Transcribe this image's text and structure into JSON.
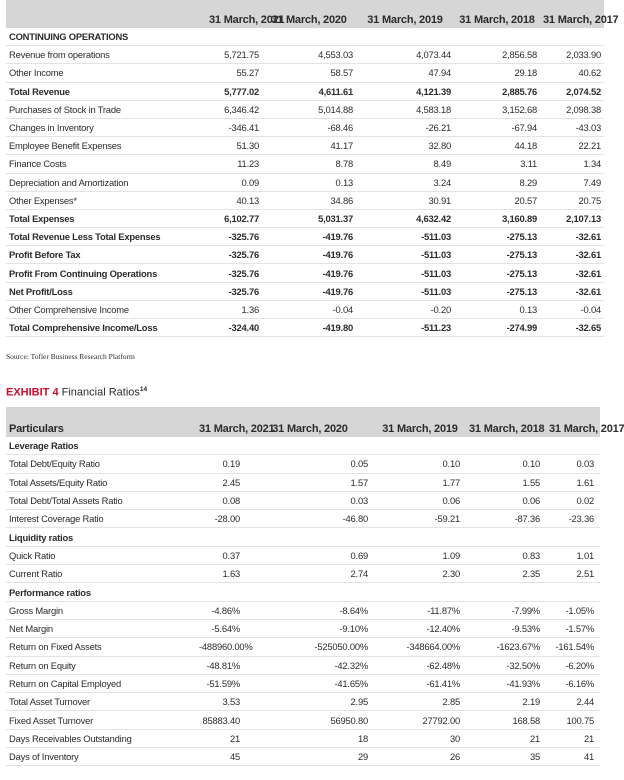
{
  "income_table": {
    "columns": [
      "31 March, 2021",
      "31 March, 2020",
      "31 March, 2019",
      "31 March, 2018",
      "31 March, 2017"
    ],
    "section": "CONTINUING OPERATIONS",
    "rows": [
      {
        "label": "Revenue from operations",
        "values": [
          "5,721.75",
          "4,553.03",
          "4,073.44",
          "2,856.58",
          "2,033.90"
        ]
      },
      {
        "label": "Other Income",
        "values": [
          "55.27",
          "58.57",
          "47.94",
          "29.18",
          "40.62"
        ]
      },
      {
        "label": "Total Revenue",
        "bold": true,
        "values": [
          "5,777.02",
          "4,611.61",
          "4,121.39",
          "2,885.76",
          "2,074.52"
        ]
      },
      {
        "label": "Purchases of Stock in Trade",
        "values": [
          "6,346.42",
          "5,014.88",
          "4,583.18",
          "3,152.68",
          "2,098.38"
        ]
      },
      {
        "label": "Changes in Inventory",
        "values": [
          "-346.41",
          "-68.46",
          "-26.21",
          "-67.94",
          "-43.03"
        ]
      },
      {
        "label": "Employee Benefit Expenses",
        "values": [
          "51.30",
          "41.17",
          "32.80",
          "44.18",
          "22.21"
        ]
      },
      {
        "label": "Finance Costs",
        "values": [
          "11.23",
          "8.78",
          "8.49",
          "3.11",
          "1.34"
        ]
      },
      {
        "label": "Depreciation and Amortization",
        "values": [
          "0.09",
          "0.13",
          "3.24",
          "8.29",
          "7.49"
        ]
      },
      {
        "label": "Other Expenses*",
        "values": [
          "40.13",
          "34.86",
          "30.91",
          "20.57",
          "20.75"
        ]
      },
      {
        "label": "Total Expenses",
        "bold": true,
        "values": [
          "6,102.77",
          "5,031.37",
          "4,632.42",
          "3,160.89",
          "2,107.13"
        ]
      },
      {
        "label": "Total Revenue Less Total Expenses",
        "bold": true,
        "values": [
          "-325.76",
          "-419.76",
          "-511.03",
          "-275.13",
          "-32.61"
        ]
      },
      {
        "label": "Profit Before Tax",
        "bold": true,
        "values": [
          "-325.76",
          "-419.76",
          "-511.03",
          "-275.13",
          "-32.61"
        ]
      },
      {
        "label": "Profit From Continuing Operations",
        "bold": true,
        "values": [
          "-325.76",
          "-419.76",
          "-511.03",
          "-275.13",
          "-32.61"
        ]
      },
      {
        "label": "Net Profit/Loss",
        "bold": true,
        "values": [
          "-325.76",
          "-419.76",
          "-511.03",
          "-275.13",
          "-32.61"
        ]
      },
      {
        "label": "Other Comprehensive Income",
        "values": [
          "1.36",
          "-0.04",
          "-0.20",
          "0.13",
          "-0.04"
        ]
      },
      {
        "label": "Total Comprehensive Income/Loss",
        "bold": true,
        "values": [
          "-324.40",
          "-419.80",
          "-511.23",
          "-274.99",
          "-32.65"
        ]
      }
    ]
  },
  "source": "Source: Tofler Business Research Platform",
  "exhibit": {
    "label": "EXHIBIT 4",
    "title": "Financial Ratios",
    "footnote": "14"
  },
  "ratio_table": {
    "header": "Particulars",
    "columns": [
      "31 March, 2021",
      "31 March, 2020",
      "31 March, 2019",
      "31 March, 2018",
      "31 March, 2017"
    ],
    "sections": [
      {
        "title": "Leverage Ratios",
        "rows": [
          {
            "label": "Total Debt/Equity Ratio",
            "values": [
              "0.19",
              "0.05",
              "0.10",
              "0.10",
              "0.03"
            ]
          },
          {
            "label": "Total Assets/Equity Ratio",
            "values": [
              "2.45",
              "1.57",
              "1.77",
              "1.55",
              "1.61"
            ]
          },
          {
            "label": "Total Debt/Total Assets Ratio",
            "values": [
              "0.08",
              "0.03",
              "0.06",
              "0.06",
              "0.02"
            ]
          },
          {
            "label": "Interest Coverage Ratio",
            "values": [
              "-28.00",
              "-46.80",
              "-59.21",
              "-87.36",
              "-23.36"
            ]
          }
        ]
      },
      {
        "title": "Liquidity ratios",
        "rows": [
          {
            "label": "Quick Ratio",
            "values": [
              "0.37",
              "0.69",
              "1.09",
              "0.83",
              "1.01"
            ]
          },
          {
            "label": "Current Ratio",
            "values": [
              "1.63",
              "2.74",
              "2.30",
              "2.35",
              "2.51"
            ]
          }
        ]
      },
      {
        "title": "Performance ratios",
        "rows": [
          {
            "label": "Gross Margin",
            "values": [
              "-4.86%",
              "-8.64%",
              "-11.87%",
              "-7.99%",
              "-1.05%"
            ]
          },
          {
            "label": "Net Margin",
            "values": [
              "-5.64%",
              "-9.10%",
              "-12.40%",
              "-9.53%",
              "-1.57%"
            ]
          },
          {
            "label": "Return on Fixed Assets",
            "values": [
              "-488960.00%",
              "-525050.00%",
              "-348664.00%",
              "-1623.67%",
              "-161.54%"
            ]
          },
          {
            "label": "Return on Equity",
            "values": [
              "-48.81%",
              "-42.32%",
              "-62.48%",
              "-32.50%",
              "-6.20%"
            ]
          },
          {
            "label": "Return on Capital Employed",
            "values": [
              "-51.59%",
              "-41.65%",
              "-61.41%",
              "-41.93%",
              "-6.16%"
            ]
          },
          {
            "label": "Total Asset Turnover",
            "values": [
              "3.53",
              "2.95",
              "2.85",
              "2.19",
              "2.44"
            ]
          },
          {
            "label": "Fixed Asset Turnover",
            "values": [
              "85883.40",
              "56950.80",
              "27792.00",
              "168.58",
              "100.75"
            ]
          },
          {
            "label": "Days Receivables Outstanding",
            "values": [
              "21",
              "18",
              "30",
              "21",
              "21"
            ]
          },
          {
            "label": "Days of Inventory",
            "values": [
              "45",
              "29",
              "26",
              "35",
              "41"
            ]
          }
        ]
      }
    ]
  }
}
